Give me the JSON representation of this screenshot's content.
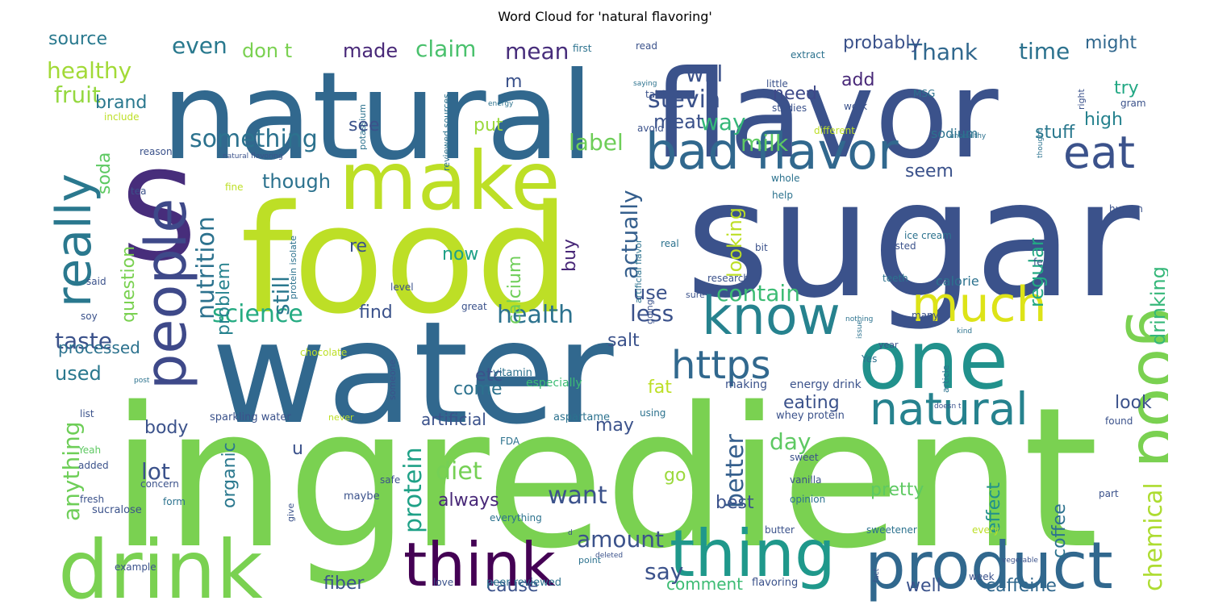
{
  "chart_data": {
    "type": "word_cloud",
    "title": "Word Cloud for 'natural flavoring'",
    "colormap": "viridis",
    "words": [
      {
        "text": "ingredient",
        "size": 240,
        "color": "#7ad151"
      },
      {
        "text": "sugar",
        "size": 200,
        "color": "#3b528b"
      },
      {
        "text": "food",
        "size": 185,
        "color": "#bddf26"
      },
      {
        "text": "water",
        "size": 175,
        "color": "#31688e"
      },
      {
        "text": "natural",
        "size": 150,
        "color": "#31688e"
      },
      {
        "text": "flavor",
        "size": 150,
        "color": "#3b528b"
      },
      {
        "text": "S",
        "size": 150,
        "color": "#472d7b"
      },
      {
        "text": "make",
        "size": 100,
        "color": "#bddf26"
      },
      {
        "text": "drink",
        "size": 100,
        "color": "#7ad151"
      },
      {
        "text": "one",
        "size": 100,
        "color": "#21918c"
      },
      {
        "text": "thing",
        "size": 80,
        "color": "#1f988b"
      },
      {
        "text": "product",
        "size": 80,
        "color": "#31688e"
      },
      {
        "text": "good",
        "size": 80,
        "color": "#7ad151"
      },
      {
        "text": "think",
        "size": 75,
        "color": "#440154"
      },
      {
        "text": "people",
        "size": 70,
        "color": "#3e4989"
      },
      {
        "text": "know",
        "size": 65,
        "color": "#26828e"
      },
      {
        "text": "bad flavor",
        "size": 62,
        "color": "#31688e"
      },
      {
        "text": "really",
        "size": 60,
        "color": "#2a788e"
      },
      {
        "text": "much",
        "size": 60,
        "color": "#dde318"
      },
      {
        "text": "eat",
        "size": 55,
        "color": "#3b528b"
      },
      {
        "text": "natural",
        "size": 55,
        "color": "#26828e"
      },
      {
        "text": "https",
        "size": 48,
        "color": "#31688e"
      },
      {
        "text": "stevia",
        "size": 30,
        "color": "#3b528b"
      },
      {
        "text": "nutrition",
        "size": 30,
        "color": "#2c728e"
      },
      {
        "text": "something",
        "size": 30,
        "color": "#2c728e"
      },
      {
        "text": "science",
        "size": 30,
        "color": "#25ab82"
      },
      {
        "text": "health",
        "size": 30,
        "color": "#2c728e"
      },
      {
        "text": "protein",
        "size": 30,
        "color": "#1fa187"
      },
      {
        "text": "better",
        "size": 30,
        "color": "#355f8d"
      },
      {
        "text": "diet",
        "size": 30,
        "color": "#75d054"
      },
      {
        "text": "want",
        "size": 30,
        "color": "#3b528b"
      },
      {
        "text": "chemical",
        "size": 30,
        "color": "#addc30"
      },
      {
        "text": "even",
        "size": 28,
        "color": "#29798e"
      },
      {
        "text": "claim",
        "size": 28,
        "color": "#4ac16d"
      },
      {
        "text": "mean",
        "size": 28,
        "color": "#472d7b"
      },
      {
        "text": "time",
        "size": 28,
        "color": "#2c728e"
      },
      {
        "text": "Thank",
        "size": 28,
        "color": "#31688e"
      },
      {
        "text": "healthy",
        "size": 28,
        "color": "#a2da37"
      },
      {
        "text": "fruit",
        "size": 28,
        "color": "#95d840"
      },
      {
        "text": "will",
        "size": 28,
        "color": "#3b528b"
      },
      {
        "text": "label",
        "size": 28,
        "color": "#6ece58"
      },
      {
        "text": "milk",
        "size": 28,
        "color": "#5ec962"
      },
      {
        "text": "way",
        "size": 28,
        "color": "#35b779"
      },
      {
        "text": "actually",
        "size": 28,
        "color": "#355f8d"
      },
      {
        "text": "still",
        "size": 28,
        "color": "#2a788e"
      },
      {
        "text": "contain",
        "size": 28,
        "color": "#3dbc74"
      },
      {
        "text": "less",
        "size": 28,
        "color": "#3b528b"
      },
      {
        "text": "taste",
        "size": 28,
        "color": "#3b528b"
      },
      {
        "text": "lot",
        "size": 28,
        "color": "#3b528b"
      },
      {
        "text": "anything",
        "size": 28,
        "color": "#6ece58"
      },
      {
        "text": "amount",
        "size": 28,
        "color": "#3b528b"
      },
      {
        "text": "say",
        "size": 28,
        "color": "#3b528b"
      },
      {
        "text": "day",
        "size": 28,
        "color": "#5ec962"
      },
      {
        "text": "looking",
        "size": 24,
        "color": "#bddf26"
      },
      {
        "text": "regular",
        "size": 24,
        "color": "#22a884"
      },
      {
        "text": "drinking",
        "size": 24,
        "color": "#35b779"
      },
      {
        "text": "made",
        "size": 24,
        "color": "#482878"
      },
      {
        "text": "don t",
        "size": 24,
        "color": "#7ad151"
      },
      {
        "text": "source",
        "size": 22,
        "color": "#29798e"
      },
      {
        "text": "probably",
        "size": 22,
        "color": "#3b528b"
      },
      {
        "text": "might",
        "size": 22,
        "color": "#31688e"
      },
      {
        "text": "meat",
        "size": 24,
        "color": "#3b528b"
      },
      {
        "text": "need",
        "size": 22,
        "color": "#3e4989"
      },
      {
        "text": "stuff",
        "size": 22,
        "color": "#2a788e"
      },
      {
        "text": "high",
        "size": 22,
        "color": "#26828e"
      },
      {
        "text": "try",
        "size": 22,
        "color": "#22a884"
      },
      {
        "text": "brand",
        "size": 22,
        "color": "#2a788e"
      },
      {
        "text": "soda",
        "size": 22,
        "color": "#5ec962"
      },
      {
        "text": "though",
        "size": 24,
        "color": "#2c728e"
      },
      {
        "text": "seem",
        "size": 22,
        "color": "#3b528b"
      },
      {
        "text": "question",
        "size": 22,
        "color": "#7ad151"
      },
      {
        "text": "put",
        "size": 22,
        "color": "#9bd93c"
      },
      {
        "text": "calcium",
        "size": 22,
        "color": "#6ece58"
      },
      {
        "text": "problem",
        "size": 22,
        "color": "#26828e"
      },
      {
        "text": "buy",
        "size": 22,
        "color": "#482878"
      },
      {
        "text": "use",
        "size": 24,
        "color": "#3b528b"
      },
      {
        "text": "find",
        "size": 22,
        "color": "#3b528b"
      },
      {
        "text": "now",
        "size": 22,
        "color": "#1fa187"
      },
      {
        "text": "processed",
        "size": 20,
        "color": "#2c728e"
      },
      {
        "text": "used",
        "size": 24,
        "color": "#2a788e"
      },
      {
        "text": "etc",
        "size": 22,
        "color": "#3b528b"
      },
      {
        "text": "salt",
        "size": 22,
        "color": "#3b528b"
      },
      {
        "text": "fat",
        "size": 22,
        "color": "#bddf26"
      },
      {
        "text": "eating",
        "size": 22,
        "color": "#3b528b"
      },
      {
        "text": "look",
        "size": 22,
        "color": "#3b528b"
      },
      {
        "text": "come",
        "size": 22,
        "color": "#2c728e"
      },
      {
        "text": "body",
        "size": 22,
        "color": "#3b528b"
      },
      {
        "text": "artificial",
        "size": 20,
        "color": "#3b528b"
      },
      {
        "text": "may",
        "size": 22,
        "color": "#3b528b"
      },
      {
        "text": "organic",
        "size": 22,
        "color": "#2a788e"
      },
      {
        "text": "always",
        "size": 22,
        "color": "#482878"
      },
      {
        "text": "go",
        "size": 22,
        "color": "#9bd93c"
      },
      {
        "text": "pretty",
        "size": 22,
        "color": "#5ec962"
      },
      {
        "text": "best",
        "size": 22,
        "color": "#3b528b"
      },
      {
        "text": "effect",
        "size": 22,
        "color": "#21918c"
      },
      {
        "text": "coffee",
        "size": 22,
        "color": "#2c728e"
      },
      {
        "text": "fiber",
        "size": 22,
        "color": "#3b528b"
      },
      {
        "text": "cause",
        "size": 22,
        "color": "#3b528b"
      },
      {
        "text": "comment",
        "size": 20,
        "color": "#3dbc74"
      },
      {
        "text": "well",
        "size": 22,
        "color": "#3b528b"
      },
      {
        "text": "caffeine",
        "size": 22,
        "color": "#31688e"
      },
      {
        "text": "sodium",
        "size": 16,
        "color": "#2c728e"
      },
      {
        "text": "calorie",
        "size": 16,
        "color": "#2c728e"
      },
      {
        "text": "vitamin",
        "size": 13,
        "color": "#2c728e"
      },
      {
        "text": "especially",
        "size": 14,
        "color": "#3dbc74"
      },
      {
        "text": "making",
        "size": 14,
        "color": "#3b528b"
      },
      {
        "text": "energy drink",
        "size": 14,
        "color": "#3b528b"
      },
      {
        "text": "whey protein",
        "size": 13,
        "color": "#3b528b"
      },
      {
        "text": "sparkling water",
        "size": 13,
        "color": "#3b528b"
      },
      {
        "text": "aspartame",
        "size": 13,
        "color": "#2c728e"
      },
      {
        "text": "using",
        "size": 12,
        "color": "#2c728e"
      },
      {
        "text": "FDA",
        "size": 12,
        "color": "#2c728e"
      },
      {
        "text": "sweet",
        "size": 12,
        "color": "#3b528b"
      },
      {
        "text": "vanilla",
        "size": 12,
        "color": "#3b528b"
      },
      {
        "text": "opinion",
        "size": 12,
        "color": "#2c728e"
      },
      {
        "text": "sweetener",
        "size": 12,
        "color": "#2c728e"
      },
      {
        "text": "butter",
        "size": 12,
        "color": "#3b528b"
      },
      {
        "text": "every",
        "size": 12,
        "color": "#bddf26"
      },
      {
        "text": "peer reviewed",
        "size": 13,
        "color": "#2c728e"
      },
      {
        "text": "flavoring",
        "size": 13,
        "color": "#3b528b"
      },
      {
        "text": "love",
        "size": 12,
        "color": "#3b528b"
      },
      {
        "text": "point",
        "size": 11,
        "color": "#2c728e"
      },
      {
        "text": "maybe",
        "size": 13,
        "color": "#3b528b"
      },
      {
        "text": "sucralose",
        "size": 13,
        "color": "#3b528b"
      },
      {
        "text": "example",
        "size": 12,
        "color": "#3b528b"
      },
      {
        "text": "fresh",
        "size": 12,
        "color": "#3b528b"
      },
      {
        "text": "concern",
        "size": 12,
        "color": "#3b528b"
      },
      {
        "text": "added",
        "size": 12,
        "color": "#3b528b"
      },
      {
        "text": "list",
        "size": 12,
        "color": "#3b528b"
      },
      {
        "text": "Yeah",
        "size": 12,
        "color": "#5ec962"
      },
      {
        "text": "never",
        "size": 11,
        "color": "#bddf26"
      },
      {
        "text": "form",
        "size": 12,
        "color": "#2c728e"
      },
      {
        "text": "safe",
        "size": 12,
        "color": "#3b528b"
      },
      {
        "text": "everything",
        "size": 12,
        "color": "#2c728e"
      },
      {
        "text": "give",
        "size": 11,
        "color": "#3b528b"
      },
      {
        "text": "chocolate",
        "size": 12,
        "color": "#bddf26"
      },
      {
        "text": "great",
        "size": 12,
        "color": "#3b528b"
      },
      {
        "text": "someone",
        "size": 11,
        "color": "#3b528b"
      },
      {
        "text": "soy",
        "size": 12,
        "color": "#3b528b"
      },
      {
        "text": "said",
        "size": 12,
        "color": "#3b528b"
      },
      {
        "text": "level",
        "size": 12,
        "color": "#3b528b"
      },
      {
        "text": "research",
        "size": 12,
        "color": "#3b528b"
      },
      {
        "text": "sure",
        "size": 11,
        "color": "#3b528b"
      },
      {
        "text": "going",
        "size": 11,
        "color": "#3b528b"
      },
      {
        "text": "many",
        "size": 12,
        "color": "#3b528b"
      },
      {
        "text": "teeth",
        "size": 12,
        "color": "#2c728e"
      },
      {
        "text": "year",
        "size": 11,
        "color": "#3b528b"
      },
      {
        "text": "Yes",
        "size": 12,
        "color": "#2c728e"
      },
      {
        "text": "article",
        "size": 11,
        "color": "#2c728e"
      },
      {
        "text": "found",
        "size": 12,
        "color": "#3b528b"
      },
      {
        "text": "part",
        "size": 12,
        "color": "#3b528b"
      },
      {
        "text": "week",
        "size": 12,
        "color": "#3b528b"
      },
      {
        "text": "ice cream",
        "size": 12,
        "color": "#2c728e"
      },
      {
        "text": "feel",
        "size": 12,
        "color": "#3b528b"
      },
      {
        "text": "bit",
        "size": 12,
        "color": "#3b528b"
      },
      {
        "text": "listed",
        "size": 12,
        "color": "#3b528b"
      },
      {
        "text": "real",
        "size": 12,
        "color": "#2c728e"
      },
      {
        "text": "help",
        "size": 12,
        "color": "#2c728e"
      },
      {
        "text": "whole",
        "size": 12,
        "color": "#2c728e"
      },
      {
        "text": "human",
        "size": 12,
        "color": "#3b528b"
      },
      {
        "text": "avoid",
        "size": 12,
        "color": "#3b528b"
      },
      {
        "text": "thought",
        "size": 9,
        "color": "#2c728e"
      },
      {
        "text": "take",
        "size": 12,
        "color": "#3b528b"
      },
      {
        "text": "right",
        "size": 11,
        "color": "#3b528b"
      },
      {
        "text": "gram",
        "size": 12,
        "color": "#3b528b"
      },
      {
        "text": "work",
        "size": 12,
        "color": "#3b528b"
      },
      {
        "text": "studies",
        "size": 12,
        "color": "#3b528b"
      },
      {
        "text": "MSG",
        "size": 12,
        "color": "#2c728e"
      },
      {
        "text": "different",
        "size": 12,
        "color": "#bddf26"
      },
      {
        "text": "fine",
        "size": 12,
        "color": "#bddf26"
      },
      {
        "text": "extract",
        "size": 12,
        "color": "#2c728e"
      },
      {
        "text": "little",
        "size": 12,
        "color": "#3b528b"
      },
      {
        "text": "first",
        "size": 12,
        "color": "#2c728e"
      },
      {
        "text": "read",
        "size": 12,
        "color": "#3b528b"
      },
      {
        "text": "saying",
        "size": 9,
        "color": "#2c728e"
      },
      {
        "text": "energy",
        "size": 9,
        "color": "#2c728e"
      },
      {
        "text": "include",
        "size": 12,
        "color": "#bddf26"
      },
      {
        "text": "reason",
        "size": 12,
        "color": "#3b528b"
      },
      {
        "text": "natural flavoring",
        "size": 9,
        "color": "#3b528b"
      },
      {
        "text": "tea",
        "size": 12,
        "color": "#3b528b"
      },
      {
        "text": "potassium",
        "size": 11,
        "color": "#2c728e"
      },
      {
        "text": "reviewed sources",
        "size": 11,
        "color": "#2c728e"
      },
      {
        "text": "protein isolate",
        "size": 11,
        "color": "#2c728e"
      },
      {
        "text": "artificial flavor",
        "size": 11,
        "color": "#2c728e"
      },
      {
        "text": "re",
        "size": 22,
        "color": "#3b528b"
      },
      {
        "text": "m",
        "size": 22,
        "color": "#3b528b"
      },
      {
        "text": "see",
        "size": 22,
        "color": "#3b528b"
      },
      {
        "text": "add",
        "size": 22,
        "color": "#482878"
      },
      {
        "text": "u",
        "size": 22,
        "color": "#3b528b"
      },
      {
        "text": "unhealthy",
        "size": 9,
        "color": "#2c728e"
      },
      {
        "text": "issue",
        "size": 9,
        "color": "#2c728e"
      },
      {
        "text": "nothing",
        "size": 9,
        "color": "#2c728e"
      },
      {
        "text": "kind",
        "size": 9,
        "color": "#2c728e"
      },
      {
        "text": "post",
        "size": 9,
        "color": "#2c728e"
      },
      {
        "text": "doesn t",
        "size": 9,
        "color": "#3b528b"
      },
      {
        "text": "deleted",
        "size": 9,
        "color": "#3b528b"
      },
      {
        "text": "d",
        "size": 9,
        "color": "#3b528b"
      },
      {
        "text": "vegetable",
        "size": 9,
        "color": "#3b528b"
      },
      {
        "text": "fact",
        "size": 9,
        "color": "#3b528b"
      }
    ]
  }
}
